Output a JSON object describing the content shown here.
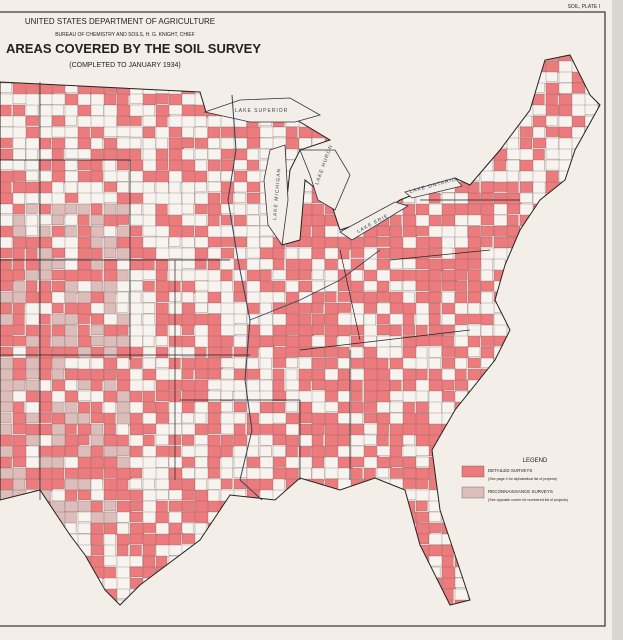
{
  "header": {
    "plate": "SOIL, PLATE I",
    "department": "UNITED STATES DEPARTMENT OF AGRICULTURE",
    "bureau": "BUREAU OF CHEMISTRY AND SOILS, H. G. KNIGHT, CHIEF",
    "title": "AREAS COVERED BY THE SOIL SURVEY",
    "subtitle": "(COMPLETED TO JANUARY 1934)"
  },
  "legend": {
    "title": "LEGEND",
    "items": [
      {
        "label": "DETAILED SURVEYS",
        "note": "(See page 4 for alphabetical list of projects)"
      },
      {
        "label": "RECONNAISSANCE SURVEYS",
        "note": "(See opposite corner for numbered list of projects)"
      }
    ]
  },
  "lakes": [
    "LAKE SUPERIOR",
    "LAKE MICHIGAN",
    "LAKE HURON",
    "LAKE ERIE",
    "LAKE ONTARIO"
  ]
}
